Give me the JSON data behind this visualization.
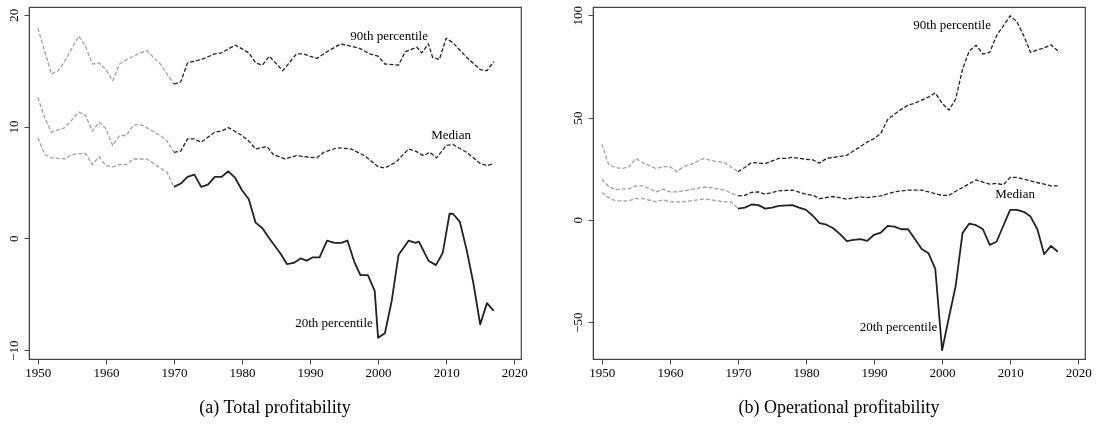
{
  "chart_data": [
    {
      "type": "line",
      "title": "(a) Total profitability",
      "xlim": [
        1948.7,
        2021
      ],
      "xticks": [
        1950,
        1960,
        1970,
        1980,
        1990,
        2000,
        2010,
        2020
      ],
      "ylim": [
        -10.8,
        20.7
      ],
      "yticks": [
        -10,
        0,
        10,
        20
      ],
      "grid": false,
      "marker": "none",
      "series": [
        {
          "color": "#a0a0a0",
          "line_style": "dashed",
          "x": [
            1950,
            1952,
            1953,
            1954,
            1956,
            1957,
            1958,
            1959,
            1960,
            1961,
            1962,
            1964,
            1966,
            1968,
            1970
          ],
          "values": [
            18.8,
            14.7,
            15.0,
            15.9,
            18.1,
            17.2,
            15.6,
            15.7,
            15.1,
            14.1,
            15.6,
            16.3,
            16.8,
            15.6,
            13.8
          ]
        },
        {
          "color": "#222222",
          "line_style": "dashed",
          "x": [
            1970,
            1971,
            1972,
            1974,
            1976,
            1977,
            1979,
            1981,
            1982,
            1983,
            1984,
            1986,
            1988,
            1989,
            1991,
            1992.5,
            1994.5,
            1996,
            1997.3,
            1998.8,
            2000,
            2001,
            2003,
            2004,
            2005.7,
            2006.4,
            2007.4,
            2008,
            2009,
            2010,
            2011,
            2013,
            2015,
            2016,
            2017
          ],
          "values": [
            13.8,
            14.0,
            15.7,
            16.0,
            16.5,
            16.6,
            17.3,
            16.6,
            15.7,
            15.5,
            16.3,
            15.0,
            16.5,
            16.5,
            16.1,
            16.7,
            17.4,
            17.2,
            17.0,
            16.5,
            16.3,
            15.6,
            15.5,
            16.7,
            17.1,
            16.6,
            17.4,
            16.2,
            16.0,
            17.9,
            17.5,
            16.2,
            15.1,
            15.0,
            15.8
          ]
        },
        {
          "color": "#a0a0a0",
          "line_style": "dashed",
          "x": [
            1950,
            1951,
            1952,
            1954,
            1956,
            1957,
            1958,
            1959,
            1960,
            1961,
            1962,
            1963,
            1964,
            1965,
            1966,
            1968,
            1969,
            1970
          ],
          "values": [
            12.6,
            10.8,
            9.5,
            9.9,
            11.3,
            11.0,
            9.6,
            10.4,
            9.8,
            8.3,
            9.2,
            9.2,
            10.1,
            10.2,
            9.9,
            9.2,
            8.7,
            7.7
          ]
        },
        {
          "color": "#222222",
          "line_style": "dashed",
          "x": [
            1970,
            1971,
            1972,
            1973,
            1974,
            1976,
            1977,
            1978,
            1980,
            1981,
            1982,
            1983.7,
            1984.6,
            1986.3,
            1988,
            1989.2,
            1991,
            1992,
            1994,
            1996,
            1998,
            2000,
            2001,
            2002.6,
            2004.5,
            2005.5,
            2006.7,
            2007.6,
            2008.6,
            2010,
            2011,
            2013,
            2015,
            2016,
            2017
          ],
          "values": [
            7.7,
            7.8,
            8.9,
            8.9,
            8.6,
            9.5,
            9.6,
            9.9,
            9.2,
            8.7,
            8.0,
            8.2,
            7.5,
            7.1,
            7.4,
            7.3,
            7.2,
            7.7,
            8.1,
            8.0,
            7.4,
            6.4,
            6.3,
            6.8,
            8.0,
            7.8,
            7.4,
            7.7,
            7.2,
            8.3,
            8.4,
            7.7,
            6.7,
            6.5,
            6.7
          ]
        },
        {
          "color": "#a0a0a0",
          "line_style": "dashed",
          "x": [
            1950,
            1951,
            1952,
            1954,
            1955,
            1957,
            1958,
            1959,
            1960,
            1961,
            1962,
            1963,
            1964,
            1966,
            1968,
            1969,
            1970
          ],
          "values": [
            9.0,
            7.5,
            7.2,
            7.1,
            7.5,
            7.6,
            6.6,
            7.3,
            6.5,
            6.4,
            6.6,
            6.6,
            7.1,
            7.1,
            6.3,
            5.9,
            4.6
          ]
        },
        {
          "color": "#222222",
          "line_style": "solid",
          "x": [
            1970,
            1971,
            1972,
            1973,
            1974,
            1975,
            1976,
            1977,
            1978,
            1979,
            1980,
            1981,
            1982,
            1983,
            1984,
            1985.7,
            1986.6,
            1987.6,
            1988.6,
            1989.5,
            1990.4,
            1991.4,
            1992.5,
            1993.6,
            1994.6,
            1995.5,
            1996.5,
            1997.4,
            1998.5,
            1999.5,
            2000,
            2001,
            2002,
            2003,
            2004.5,
            2005.5,
            2006,
            2007.4,
            2008.5,
            2009.5,
            2010.5,
            2011,
            2012,
            2013,
            2014,
            2015,
            2016,
            2017
          ],
          "values": [
            4.6,
            4.9,
            5.5,
            5.7,
            4.6,
            4.8,
            5.5,
            5.5,
            6.0,
            5.4,
            4.3,
            3.5,
            1.4,
            0.9,
            0,
            -1.4,
            -2.3,
            -2.2,
            -1.8,
            -2.0,
            -1.7,
            -1.7,
            -0.2,
            -0.4,
            -0.4,
            -0.2,
            -2.1,
            -3.3,
            -3.3,
            -4.7,
            -8.9,
            -8.5,
            -5.6,
            -1.5,
            -0.2,
            -0.4,
            -0.3,
            -2.0,
            -2.4,
            -1.3,
            2.2,
            2.2,
            1.5,
            -1.0,
            -4.0,
            -7.7,
            -5.8,
            -6.5
          ]
        }
      ],
      "annotations": [
        "90th percentile",
        "Median",
        "20th percentile"
      ]
    },
    {
      "type": "line",
      "title": "(b) Operational profitability",
      "xlim": [
        1948.7,
        2021
      ],
      "xticks": [
        1950,
        1960,
        1970,
        1980,
        1990,
        2000,
        2010,
        2020
      ],
      "ylim": [
        -68,
        104
      ],
      "yticks": [
        -50,
        0,
        50,
        100
      ],
      "grid": false,
      "marker": "none",
      "series": [
        {
          "color": "#a0a0a0",
          "line_style": "dashed",
          "x": [
            1950,
            1951,
            1952,
            1953,
            1954,
            1955,
            1956,
            1958,
            1959,
            1960,
            1961,
            1962,
            1963,
            1965,
            1966,
            1968,
            1970
          ],
          "values": [
            37,
            27,
            25.6,
            25,
            26,
            30,
            28,
            25,
            26,
            26,
            23.5,
            26,
            27,
            30,
            29,
            28,
            23.5
          ]
        },
        {
          "color": "#222222",
          "line_style": "dashed",
          "x": [
            1970,
            1971,
            1972,
            1974,
            1976,
            1977,
            1978,
            1980,
            1981,
            1982,
            1983,
            1985,
            1986,
            1988,
            1989,
            1990,
            1991,
            1992,
            1993,
            1994,
            1995,
            1996,
            1997,
            1998,
            1999,
            2000,
            2001,
            2002,
            2003,
            2004,
            2005,
            2006,
            2007,
            2008,
            2009,
            2010,
            2011,
            2012,
            2013,
            2014,
            2015,
            2016,
            2017
          ],
          "values": [
            23.5,
            25.6,
            28,
            27.5,
            30,
            30,
            30.5,
            29.6,
            29.3,
            27.7,
            30,
            31,
            31.6,
            35.8,
            38,
            39.7,
            42.3,
            49,
            51.6,
            54,
            56,
            57,
            58.5,
            60,
            62,
            57,
            53.6,
            59,
            73.6,
            82.6,
            85.3,
            81,
            81.8,
            90,
            94.8,
            99.7,
            96.7,
            90,
            81.8,
            83,
            84,
            85.5,
            82.6
          ]
        },
        {
          "color": "#a0a0a0",
          "line_style": "dashed",
          "x": [
            1950,
            1951,
            1952,
            1954,
            1955,
            1956,
            1958,
            1959,
            1960,
            1961,
            1962,
            1963,
            1965,
            1966,
            1968,
            1970
          ],
          "values": [
            19.9,
            16.3,
            14.7,
            15.3,
            16.6,
            16.6,
            13.7,
            15,
            13.7,
            13.7,
            14.2,
            14.7,
            16,
            15.8,
            14.5,
            11.7
          ]
        },
        {
          "color": "#222222",
          "line_style": "dashed",
          "x": [
            1970,
            1971,
            1972,
            1973,
            1974,
            1976,
            1978,
            1980,
            1981,
            1982,
            1984,
            1986,
            1988,
            1989,
            1991,
            1993,
            1995,
            1997,
            1998,
            2000,
            2001,
            2003,
            2005,
            2007,
            2008,
            2009,
            2010,
            2011,
            2013,
            2015,
            2016,
            2017
          ],
          "values": [
            11.7,
            12,
            13.4,
            13.7,
            12.5,
            14.2,
            14.5,
            12.5,
            12,
            10.4,
            11.4,
            10.1,
            11.2,
            10.9,
            11.7,
            13.7,
            14.5,
            14.5,
            13.7,
            12,
            12,
            15.8,
            19.5,
            17.4,
            17.8,
            17.1,
            20.7,
            20.7,
            19,
            17.4,
            16.6,
            16.6
          ]
        },
        {
          "color": "#a0a0a0",
          "line_style": "dashed",
          "x": [
            1950,
            1951,
            1952,
            1954,
            1955,
            1956,
            1958,
            1959,
            1960,
            1962,
            1963,
            1965,
            1966,
            1968,
            1969,
            1970
          ],
          "values": [
            13.4,
            10.9,
            9.3,
            9.3,
            10.4,
            10.4,
            8.8,
            9.8,
            8.8,
            8.8,
            9.3,
            10.1,
            9.8,
            8.8,
            8.8,
            5.5
          ]
        },
        {
          "color": "#222222",
          "line_style": "solid",
          "x": [
            1970,
            1971,
            1972,
            1973,
            1974,
            1975,
            1976,
            1978,
            1979,
            1980,
            1981,
            1982,
            1983,
            1984,
            1985,
            1986,
            1987,
            1988,
            1989,
            1990,
            1991,
            1992,
            1993,
            1994,
            1995,
            1996,
            1997,
            1998,
            1999,
            2000,
            2001,
            2002,
            2003,
            2004,
            2005,
            2006,
            2007,
            2008,
            2009,
            2010,
            2011,
            2012,
            2013,
            2014,
            2015,
            2016,
            2017
          ],
          "values": [
            5.5,
            6,
            7.5,
            7.2,
            5.5,
            6,
            6.8,
            7.2,
            6,
            4.9,
            2,
            -1.6,
            -2.4,
            -4.1,
            -7,
            -10.4,
            -9.8,
            -9.4,
            -10.3,
            -7.3,
            -6.2,
            -2.9,
            -3.3,
            -4.6,
            -4.6,
            -9.4,
            -14.3,
            -16.3,
            -24,
            -63.7,
            -47.7,
            -32.2,
            -6.5,
            -1.8,
            -2.6,
            -4.6,
            -12.2,
            -10.7,
            -2.9,
            4.9,
            4.9,
            3.9,
            1.6,
            -4.6,
            -16.8,
            -12.7,
            -15.6
          ]
        }
      ],
      "annotations": [
        "90th percentile",
        "Median",
        "20th percentile"
      ]
    }
  ]
}
